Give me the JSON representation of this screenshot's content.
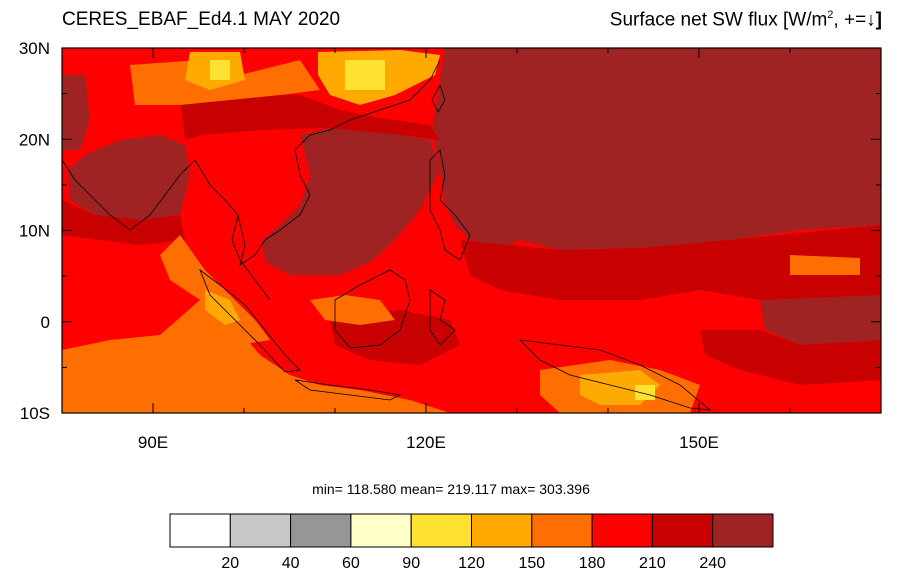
{
  "title_left": "CERES_EBAF_Ed4.1 MAY 2020",
  "title_right": {
    "prefix": "Surface net SW flux [W/m",
    "superscript": "2",
    "suffix": ", +=",
    "arrow": "↓",
    "close": "]"
  },
  "stats": "min= 118.580  mean= 219.117  max= 303.396",
  "map": {
    "lon_range": [
      80,
      170
    ],
    "lat_range": [
      -10,
      30
    ],
    "lat_ticks": [
      {
        "value": 30,
        "label": "30N"
      },
      {
        "value": 20,
        "label": "20N"
      },
      {
        "value": 10,
        "label": "10N"
      },
      {
        "value": 0,
        "label": "0"
      },
      {
        "value": -10,
        "label": "10S"
      }
    ],
    "lon_ticks": [
      {
        "value": 90,
        "label": "90E"
      },
      {
        "value": 120,
        "label": "120E"
      },
      {
        "value": 150,
        "label": "150E"
      }
    ]
  },
  "colorbar": {
    "colors": [
      "#ffffff",
      "#c8c8c8",
      "#969696",
      "#ffffc8",
      "#ffe132",
      "#ffaa00",
      "#ff6e00",
      "#ff0000",
      "#c80000",
      "#a02323"
    ],
    "labels": [
      "20",
      "40",
      "60",
      "90",
      "120",
      "150",
      "180",
      "210",
      "240"
    ]
  }
}
